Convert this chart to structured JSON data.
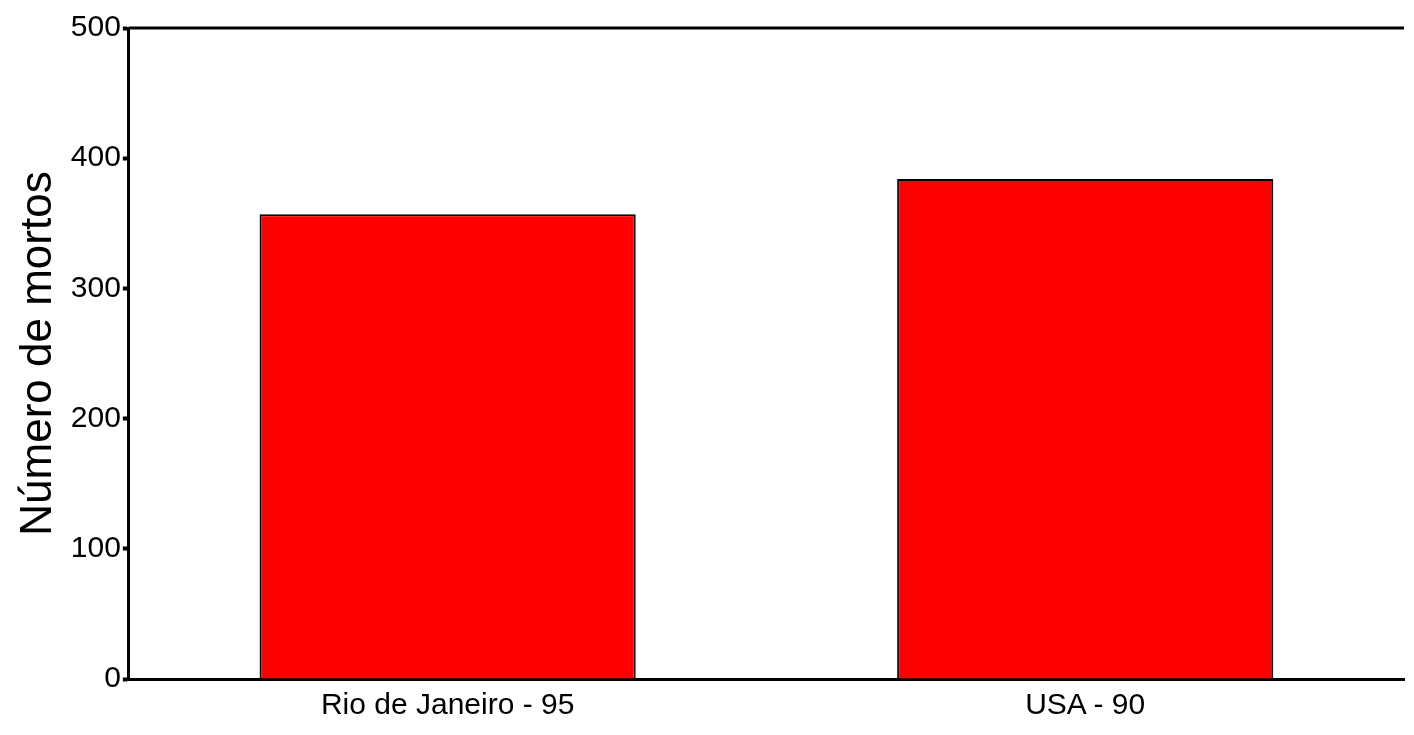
{
  "chart_data": {
    "type": "bar",
    "ylabel": "Número de mortos",
    "categories": [
      "Rio de Janeiro - 95",
      "USA - 90"
    ],
    "values": [
      357,
      384
    ],
    "color": "#ff0000",
    "ylim": [
      0,
      500
    ],
    "yticks": [
      0,
      100,
      200,
      300,
      400,
      500
    ],
    "grid": false,
    "legend": false
  }
}
